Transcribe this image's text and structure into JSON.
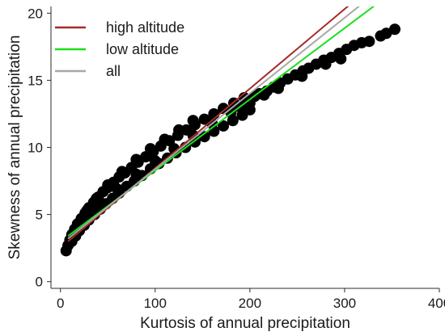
{
  "chart_data": {
    "type": "scatter",
    "xlabel": "Kurtosis of annual precipitation",
    "ylabel": "Skewness of annual precipitation",
    "xlim": [
      -10,
      400
    ],
    "ylim": [
      -0.5,
      20.5
    ],
    "x_ticks": [
      0,
      100,
      200,
      300,
      400
    ],
    "y_ticks": [
      0,
      5,
      10,
      15,
      20
    ],
    "grid": false,
    "legend_position": "top-left",
    "scatter_series": {
      "color": "#000000",
      "points": [
        {
          "x": 6,
          "y": 2.3
        },
        {
          "x": 8,
          "y": 2.7
        },
        {
          "x": 10,
          "y": 3.1
        },
        {
          "x": 12,
          "y": 3.5
        },
        {
          "x": 15,
          "y": 3.9
        },
        {
          "x": 18,
          "y": 4.3
        },
        {
          "x": 22,
          "y": 4.7
        },
        {
          "x": 26,
          "y": 5.1
        },
        {
          "x": 30,
          "y": 5.5
        },
        {
          "x": 35,
          "y": 5.9
        },
        {
          "x": 40,
          "y": 6.3
        },
        {
          "x": 45,
          "y": 6.7
        },
        {
          "x": 50,
          "y": 7.0
        },
        {
          "x": 56,
          "y": 7.4
        },
        {
          "x": 62,
          "y": 7.8
        },
        {
          "x": 68,
          "y": 8.1
        },
        {
          "x": 75,
          "y": 8.5
        },
        {
          "x": 82,
          "y": 8.9
        },
        {
          "x": 90,
          "y": 9.3
        },
        {
          "x": 98,
          "y": 9.7
        },
        {
          "x": 106,
          "y": 10.1
        },
        {
          "x": 115,
          "y": 10.5
        },
        {
          "x": 124,
          "y": 10.9
        },
        {
          "x": 133,
          "y": 11.3
        },
        {
          "x": 142,
          "y": 11.7
        },
        {
          "x": 152,
          "y": 12.1
        },
        {
          "x": 162,
          "y": 12.5
        },
        {
          "x": 172,
          "y": 12.9
        },
        {
          "x": 183,
          "y": 13.3
        },
        {
          "x": 194,
          "y": 13.7
        },
        {
          "x": 12,
          "y": 3.0
        },
        {
          "x": 16,
          "y": 3.4
        },
        {
          "x": 20,
          "y": 3.8
        },
        {
          "x": 25,
          "y": 4.2
        },
        {
          "x": 30,
          "y": 4.6
        },
        {
          "x": 36,
          "y": 5.0
        },
        {
          "x": 42,
          "y": 5.4
        },
        {
          "x": 48,
          "y": 5.8
        },
        {
          "x": 55,
          "y": 6.2
        },
        {
          "x": 62,
          "y": 6.6
        },
        {
          "x": 70,
          "y": 7.1
        },
        {
          "x": 78,
          "y": 7.5
        },
        {
          "x": 86,
          "y": 7.9
        },
        {
          "x": 95,
          "y": 8.4
        },
        {
          "x": 104,
          "y": 8.8
        },
        {
          "x": 113,
          "y": 9.2
        },
        {
          "x": 122,
          "y": 9.6
        },
        {
          "x": 132,
          "y": 10.0
        },
        {
          "x": 142,
          "y": 10.4
        },
        {
          "x": 152,
          "y": 10.8
        },
        {
          "x": 162,
          "y": 11.2
        },
        {
          "x": 172,
          "y": 11.6
        },
        {
          "x": 182,
          "y": 12.0
        },
        {
          "x": 192,
          "y": 12.4
        },
        {
          "x": 200,
          "y": 12.8
        },
        {
          "x": 20,
          "y": 4.4
        },
        {
          "x": 28,
          "y": 5.3
        },
        {
          "x": 38,
          "y": 6.2
        },
        {
          "x": 50,
          "y": 7.2
        },
        {
          "x": 65,
          "y": 8.2
        },
        {
          "x": 80,
          "y": 9.1
        },
        {
          "x": 95,
          "y": 9.9
        },
        {
          "x": 110,
          "y": 10.6
        },
        {
          "x": 125,
          "y": 11.3
        },
        {
          "x": 140,
          "y": 12.0
        },
        {
          "x": 40,
          "y": 5.6
        },
        {
          "x": 60,
          "y": 6.9
        },
        {
          "x": 80,
          "y": 8.0
        },
        {
          "x": 100,
          "y": 9.0
        },
        {
          "x": 120,
          "y": 9.9
        },
        {
          "x": 140,
          "y": 10.9
        },
        {
          "x": 160,
          "y": 11.8
        },
        {
          "x": 180,
          "y": 12.6
        },
        {
          "x": 190,
          "y": 13.0
        },
        {
          "x": 200,
          "y": 13.3
        },
        {
          "x": 205,
          "y": 13.8
        },
        {
          "x": 210,
          "y": 14.0
        },
        {
          "x": 218,
          "y": 14.2
        },
        {
          "x": 225,
          "y": 14.5
        },
        {
          "x": 232,
          "y": 14.8
        },
        {
          "x": 240,
          "y": 15.1
        },
        {
          "x": 248,
          "y": 15.4
        },
        {
          "x": 256,
          "y": 15.7
        },
        {
          "x": 262,
          "y": 15.9
        },
        {
          "x": 270,
          "y": 16.2
        },
        {
          "x": 278,
          "y": 16.5
        },
        {
          "x": 286,
          "y": 16.7
        },
        {
          "x": 294,
          "y": 17.0
        },
        {
          "x": 302,
          "y": 17.3
        },
        {
          "x": 310,
          "y": 17.6
        },
        {
          "x": 318,
          "y": 17.8
        },
        {
          "x": 326,
          "y": 17.9
        },
        {
          "x": 338,
          "y": 18.3
        },
        {
          "x": 344,
          "y": 18.5
        },
        {
          "x": 353,
          "y": 18.8
        },
        {
          "x": 280,
          "y": 16.2
        },
        {
          "x": 296,
          "y": 16.6
        },
        {
          "x": 255,
          "y": 15.3
        },
        {
          "x": 230,
          "y": 14.4
        },
        {
          "x": 215,
          "y": 13.9
        }
      ]
    },
    "lines": [
      {
        "name": "high altitude",
        "color": "#a52a2a",
        "x": [
          8,
          310
        ],
        "y": [
          3.0,
          20.9
        ]
      },
      {
        "name": "low altitude",
        "color": "#1adf1a",
        "x": [
          8,
          338
        ],
        "y": [
          3.4,
          20.9
        ]
      },
      {
        "name": "all",
        "color": "#a8a8a8",
        "x": [
          8,
          322
        ],
        "y": [
          3.2,
          20.9
        ]
      }
    ]
  }
}
